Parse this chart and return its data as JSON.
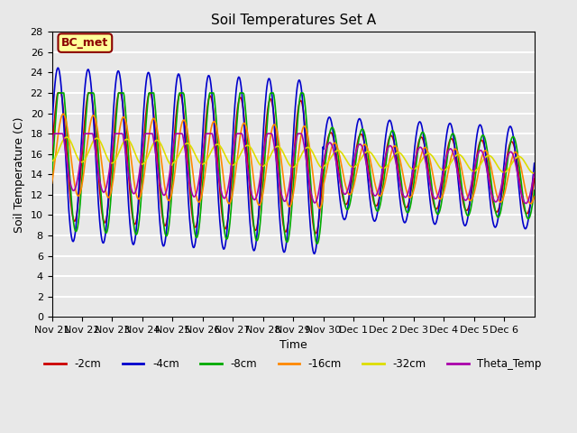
{
  "title": "Soil Temperatures Set A",
  "xlabel": "Time",
  "ylabel": "Soil Temperature (C)",
  "ylim": [
    0,
    28
  ],
  "yticks": [
    0,
    2,
    4,
    6,
    8,
    10,
    12,
    14,
    16,
    18,
    20,
    22,
    24,
    26,
    28
  ],
  "annotation_text": "BC_met",
  "annotation_color": "#8B0000",
  "annotation_bg": "#FFFF99",
  "series_colors": {
    "-2cm": "#cc0000",
    "-4cm": "#0000cc",
    "-8cm": "#00aa00",
    "-16cm": "#ff8800",
    "-32cm": "#dddd00",
    "Theta_Temp": "#aa00aa"
  },
  "background_color": "#e8e8e8",
  "plot_bg": "#e8e8e8",
  "grid_color": "#ffffff",
  "tick_labels": [
    "Nov 21",
    "Nov 22",
    "Nov 23",
    "Nov 24",
    "Nov 25",
    "Nov 26",
    "Nov 27",
    "Nov 28",
    "Nov 29",
    "Nov 30",
    "Dec 1",
    "Dec 2",
    "Dec 3",
    "Dec 4",
    "Dec 5",
    "Dec 6"
  ]
}
